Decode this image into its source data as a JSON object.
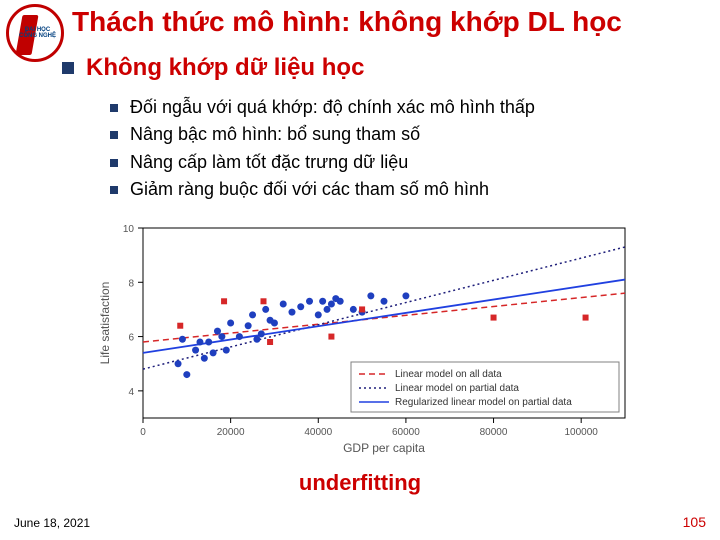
{
  "logo": {
    "alt": "University Logo",
    "ring_color": "#c00000",
    "text_line1": "ĐẠI HỌC",
    "text_line2": "CÔNG NGHỆ"
  },
  "title": "Thách thức mô hình: không khớp DL học",
  "subtitle": "Không khớp dữ liệu học",
  "bullets": [
    "Đối ngẫu với quá khớp: độ chính xác mô hình thấp",
    "Nâng bậc mô hình: bổ sung tham số",
    "Nâng cấp làm tốt đặc trưng dữ liệu",
    "Giảm ràng buộc đối với các tham số mô hình"
  ],
  "chart": {
    "type": "scatter+line",
    "xlabel": "GDP per capita",
    "ylabel": "Life satisfaction",
    "label_fontsize": 12,
    "xlim": [
      0,
      110000
    ],
    "ylim": [
      3,
      10
    ],
    "xticks": [
      0,
      20000,
      40000,
      60000,
      80000,
      100000
    ],
    "yticks": [
      4,
      6,
      8,
      10
    ],
    "background_color": "#ffffff",
    "axis_color": "#000000",
    "tick_fontsize": 10,
    "scatter_blue": {
      "color": "#1f3fbf",
      "marker": "circle",
      "marker_size": 5,
      "points": [
        [
          8000,
          5.0
        ],
        [
          9000,
          5.9
        ],
        [
          10000,
          4.6
        ],
        [
          12000,
          5.5
        ],
        [
          13000,
          5.8
        ],
        [
          14000,
          5.2
        ],
        [
          15000,
          5.8
        ],
        [
          16000,
          5.4
        ],
        [
          17000,
          6.2
        ],
        [
          18000,
          6.0
        ],
        [
          19000,
          5.5
        ],
        [
          20000,
          6.5
        ],
        [
          22000,
          6.0
        ],
        [
          24000,
          6.4
        ],
        [
          25000,
          6.8
        ],
        [
          26000,
          5.9
        ],
        [
          27000,
          6.1
        ],
        [
          28000,
          7.0
        ],
        [
          29000,
          6.6
        ],
        [
          30000,
          6.5
        ],
        [
          32000,
          7.2
        ],
        [
          34000,
          6.9
        ],
        [
          36000,
          7.1
        ],
        [
          38000,
          7.3
        ],
        [
          40000,
          6.8
        ],
        [
          41000,
          7.3
        ],
        [
          42000,
          7.0
        ],
        [
          43000,
          7.2
        ],
        [
          44000,
          7.4
        ],
        [
          45000,
          7.3
        ],
        [
          48000,
          7.0
        ],
        [
          50000,
          6.9
        ],
        [
          52000,
          7.5
        ],
        [
          55000,
          7.3
        ],
        [
          60000,
          7.5
        ]
      ]
    },
    "scatter_red": {
      "color": "#d62728",
      "marker": "square",
      "marker_size": 6,
      "points": [
        [
          8500,
          6.4
        ],
        [
          18500,
          7.3
        ],
        [
          27500,
          7.3
        ],
        [
          29000,
          5.8
        ],
        [
          43000,
          6.0
        ],
        [
          50000,
          7.0
        ],
        [
          80000,
          6.7
        ],
        [
          101000,
          6.7
        ]
      ]
    },
    "lines": [
      {
        "name": "Linear model on all data",
        "color": "#d62728",
        "dash": "6,4",
        "width": 1.5,
        "x0": 0,
        "y0": 5.8,
        "x1": 110000,
        "y1": 7.6
      },
      {
        "name": "Linear model on partial data",
        "color": "#1e1e7a",
        "dash": "2,3",
        "width": 1.5,
        "x0": 0,
        "y0": 4.8,
        "x1": 110000,
        "y1": 9.3
      },
      {
        "name": "Regularized linear model on partial data",
        "color": "#2040e0",
        "dash": "none",
        "width": 1.8,
        "x0": 0,
        "y0": 5.4,
        "x1": 110000,
        "y1": 8.1
      }
    ],
    "legend": {
      "position": "lower-right",
      "border_color": "#808080",
      "bg_color": "#ffffff",
      "fontsize": 10,
      "items": [
        {
          "label": "Linear model on all data",
          "color": "#d62728",
          "dash": "6,4"
        },
        {
          "label": "Linear model on partial data",
          "color": "#1e1e7a",
          "dash": "2,3"
        },
        {
          "label": "Regularized linear model on partial data",
          "color": "#2040e0",
          "dash": "none"
        }
      ]
    }
  },
  "underfit_label": "underfitting",
  "footer": {
    "date": "June 18, 2021",
    "page": "105"
  },
  "colors": {
    "title": "#cc0000",
    "bullet_square": "#1f3a6b",
    "body_text": "#000000"
  }
}
